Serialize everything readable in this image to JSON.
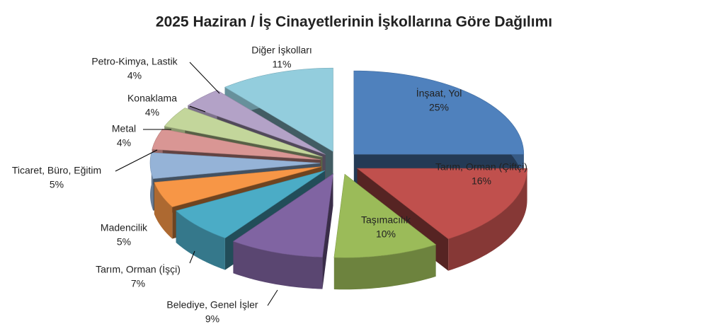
{
  "chart_data": {
    "type": "pie3d",
    "title": "2025 Haziran / İş Cinayetlerinin İşkollarına Göre Dağılımı",
    "categories": [
      "İnşaat, Yol",
      "Tarım, Orman (Çiftçi)",
      "Taşımacılık",
      "Belediye, Genel İşler",
      "Tarım, Orman (İşçi)",
      "Madencilik",
      "Ticaret, Büro, Eğitim",
      "Metal",
      "Konaklama",
      "Petro-Kimya, Lastik",
      "Diğer İşkolları"
    ],
    "values": [
      25,
      16,
      10,
      9,
      7,
      5,
      5,
      4,
      4,
      4,
      11
    ],
    "value_labels": [
      "25%",
      "16%",
      "10%",
      "9%",
      "7%",
      "5%",
      "5%",
      "4%",
      "4%",
      "4%",
      "11%"
    ],
    "colors": [
      "#4f81bd",
      "#c0504d",
      "#9bbb59",
      "#8064a2",
      "#4bacc6",
      "#f79646",
      "#95b3d7",
      "#d99694",
      "#c3d69b",
      "#b3a2c7",
      "#93cddd"
    ]
  }
}
